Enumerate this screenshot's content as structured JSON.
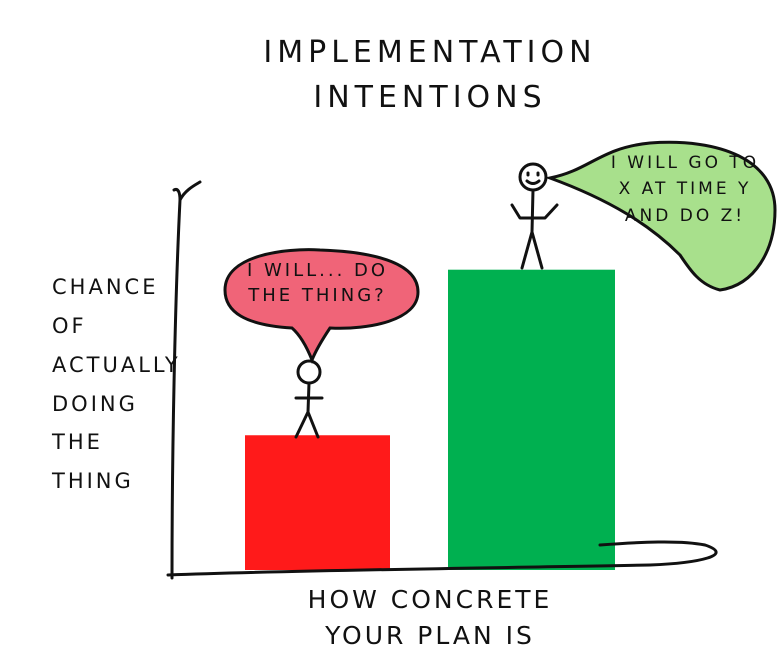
{
  "chart_data": {
    "type": "bar",
    "title": "Implementation Intentions",
    "y_label": "Chance of actually doing the thing",
    "x_label": "How concrete your plan is",
    "categories": [
      null,
      null
    ],
    "values": [
      35,
      78
    ],
    "colors": [
      "#ff1a1a",
      "#00b050"
    ],
    "ylim": [
      0,
      100
    ],
    "annotations": [
      "I will... do the thing?",
      "I will go to X at time Y and do Z!"
    ]
  }
}
